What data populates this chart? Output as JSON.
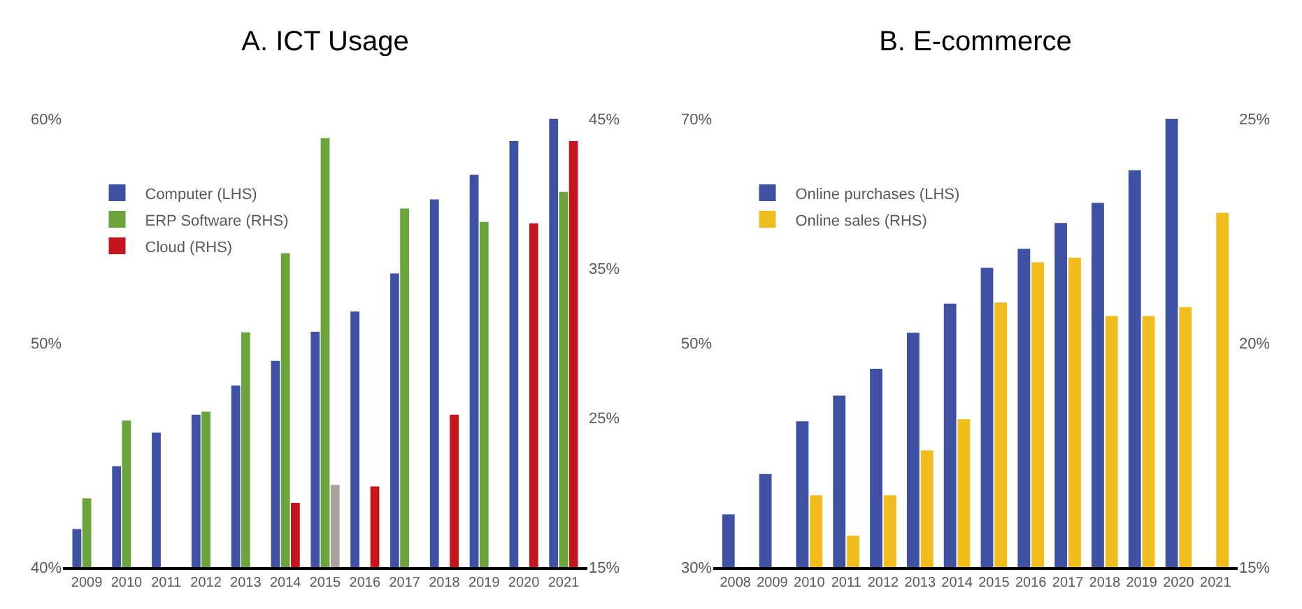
{
  "chart_data": [
    {
      "type": "bar",
      "title": "A. ICT Usage",
      "categories": [
        "2009",
        "2010",
        "2011",
        "2012",
        "2013",
        "2014",
        "2015",
        "2016",
        "2017",
        "2018",
        "2019",
        "2020",
        "2021"
      ],
      "series": [
        {
          "name": "Computer (LHS)",
          "color": "#3f51a3",
          "values": [
            41.7,
            44.5,
            46.0,
            46.8,
            48.1,
            49.2,
            50.5,
            51.4,
            53.1,
            56.4,
            57.5,
            59.0,
            60.0
          ]
        },
        {
          "name": "ERP Software (RHS)",
          "color": "#6aa43a",
          "axis": "y2",
          "values": [
            19.6,
            24.8,
            null,
            25.4,
            30.7,
            36.0,
            43.7,
            null,
            39.0,
            null,
            38.1,
            null,
            40.1
          ]
        },
        {
          "name": "Cloud (RHS)",
          "color": "#c4161c",
          "axis": "y2",
          "colors": [
            null,
            null,
            null,
            null,
            null,
            null,
            "#a9a39e",
            null,
            null,
            null,
            null,
            null,
            null
          ],
          "values": [
            null,
            null,
            null,
            null,
            null,
            19.3,
            20.5,
            20.4,
            null,
            25.2,
            null,
            38.0,
            43.5
          ]
        }
      ],
      "ylim": [
        40,
        60
      ],
      "yticks": [
        {
          "value": 40,
          "label": "40%"
        },
        {
          "value": 50,
          "label": "50%"
        },
        {
          "value": 60,
          "label": "60%"
        }
      ],
      "y2lim": [
        15,
        45
      ],
      "y2ticks": [
        {
          "value": 15,
          "label": "15%"
        },
        {
          "value": 25,
          "label": "25%"
        },
        {
          "value": 35,
          "label": "35%"
        },
        {
          "value": 45,
          "label": "45%"
        }
      ],
      "legend": "top left"
    },
    {
      "type": "bar",
      "title": "B. E-commerce",
      "categories": [
        "2008",
        "2009",
        "2010",
        "2011",
        "2012",
        "2013",
        "2014",
        "2015",
        "2016",
        "2017",
        "2018",
        "2019",
        "2020",
        "2021"
      ],
      "series": [
        {
          "name": "Online purchases (LHS)",
          "color": "#3f51a3",
          "values": [
            34.7,
            38.3,
            43.0,
            45.3,
            47.7,
            50.9,
            53.5,
            56.7,
            58.4,
            60.7,
            62.5,
            65.4,
            70.0,
            null
          ]
        },
        {
          "name": "Online sales (RHS)",
          "color": "#f0bd1c",
          "axis": "y2",
          "values": [
            null,
            null,
            16.6,
            15.7,
            16.6,
            17.6,
            18.3,
            20.9,
            21.8,
            21.9,
            20.6,
            20.6,
            20.8,
            22.9
          ]
        }
      ],
      "ylim": [
        30,
        70
      ],
      "yticks": [
        {
          "value": 30,
          "label": "30%"
        },
        {
          "value": 50,
          "label": "50%"
        },
        {
          "value": 70,
          "label": "70%"
        }
      ],
      "y2lim": [
        15,
        25
      ],
      "y2ticks": [
        {
          "value": 15,
          "label": "15%"
        },
        {
          "value": 20,
          "label": "20%"
        },
        {
          "value": 25,
          "label": "25%"
        }
      ],
      "legend": "top left"
    }
  ]
}
